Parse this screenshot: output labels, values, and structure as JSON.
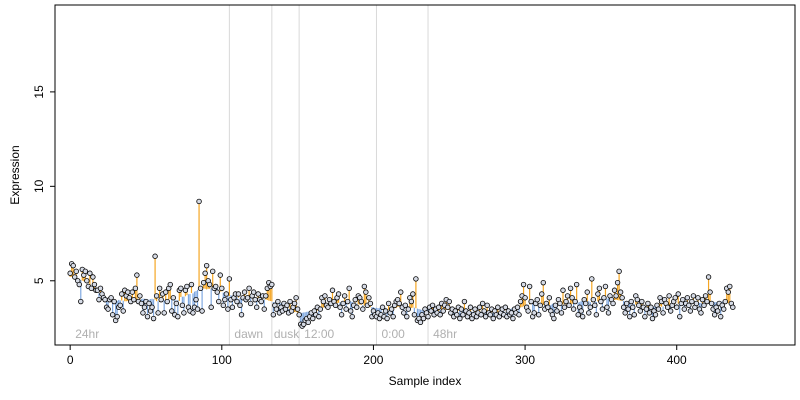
{
  "chart_data": {
    "type": "scatter",
    "xlabel": "Sample index",
    "ylabel": "Expression",
    "xlim": [
      -10,
      478
    ],
    "ylim": [
      1.6,
      19.6
    ],
    "x_ticks": [
      0,
      100,
      200,
      300,
      400
    ],
    "y_ticks": [
      5,
      10,
      15
    ],
    "grid": false,
    "baseline_style": "points joined to a smooth baseline by vertical segments: orange when above, blue when below",
    "colors": {
      "above": "#f5a623",
      "below": "#7fa8e0",
      "separator": "#d9d9d9",
      "section_label": "#b0b0b0",
      "point_fill": "#d6dbe6"
    },
    "separators": [
      105,
      133,
      151,
      202,
      236
    ],
    "section_labels": [
      {
        "x": 2,
        "text": "24hr"
      },
      {
        "x": 107,
        "text": "dawn"
      },
      {
        "x": 133,
        "text": "dusk"
      },
      {
        "x": 153,
        "text": "12:00"
      },
      {
        "x": 204,
        "text": "0:00"
      },
      {
        "x": 238,
        "text": "48hr"
      }
    ],
    "series": [
      {
        "values": [
          5.4,
          5.9,
          5.8,
          5.2,
          5.5,
          5.0,
          4.8,
          3.9,
          5.6,
          5.3,
          5.5,
          5.0,
          4.7,
          5.4,
          4.6,
          5.2,
          4.8,
          4.5,
          4.5,
          4.0,
          4.6,
          4.3,
          4.1,
          4.0,
          3.6,
          3.5,
          4.0,
          4.1,
          3.2,
          3.9,
          2.9,
          3.1,
          3.6,
          3.7,
          4.3,
          3.4,
          4.5,
          4.2,
          4.4,
          4.1,
          3.9,
          4.4,
          4.0,
          4.6,
          5.3,
          3.9,
          4.2,
          3.8,
          3.3,
          3.6,
          3.9,
          3.1,
          3.8,
          3.4,
          3.6,
          3.0,
          6.3,
          4.2,
          3.3,
          4.6,
          4.0,
          4.3,
          3.3,
          4.4,
          3.9,
          4.6,
          4.8,
          3.4,
          4.1,
          3.2,
          3.8,
          3.1,
          4.5,
          4.6,
          3.7,
          3.3,
          4.5,
          4.7,
          3.6,
          3.4,
          4.8,
          3.3,
          3.6,
          4.0,
          3.5,
          9.2,
          4.6,
          3.4,
          4.9,
          5.4,
          5.8,
          5.0,
          4.8,
          3.6,
          5.5,
          4.6,
          4.7,
          4.4,
          3.9,
          5.3,
          4.6,
          3.7,
          4.0,
          4.3,
          3.5,
          5.1,
          4.0,
          3.6,
          4.1,
          4.3,
          3.9,
          4.3,
          3.7,
          3.2,
          4.1,
          4.4,
          4.0,
          4.1,
          4.6,
          3.8,
          4.2,
          4.4,
          4.0,
          3.6,
          4.3,
          4.0,
          3.9,
          4.2,
          3.5,
          4.2,
          4.6,
          4.9,
          4.7,
          4.8,
          3.2,
          3.7,
          3.5,
          3.9,
          3.3,
          3.6,
          3.4,
          3.8,
          3.5,
          3.7,
          3.3,
          3.9,
          3.4,
          3.6,
          3.8,
          4.1,
          3.5,
          3.2,
          2.7,
          2.6,
          2.7,
          2.9,
          3.0,
          2.8,
          3.1,
          3.3,
          3.0,
          3.4,
          3.2,
          3.6,
          3.1,
          3.5,
          4.1,
          3.9,
          4.2,
          3.7,
          3.6,
          4.0,
          3.8,
          4.5,
          3.9,
          3.7,
          4.1,
          4.3,
          3.6,
          3.2,
          3.8,
          4.2,
          3.5,
          3.9,
          4.6,
          3.4,
          3.1,
          3.7,
          4.0,
          3.6,
          4.2,
          4.1,
          3.9,
          3.5,
          4.7,
          4.4,
          3.7,
          4.1,
          3.8,
          3.1,
          3.4,
          3.2,
          3.1,
          3.3,
          3.0,
          3.2,
          3.6,
          3.1,
          3.4,
          3.0,
          3.8,
          3.3,
          3.5,
          3.1,
          3.7,
          3.9,
          4.0,
          3.8,
          4.4,
          3.6,
          3.3,
          3.7,
          3.1,
          3.5,
          4.1,
          3.9,
          4.3,
          3.2,
          5.1,
          2.9,
          3.0,
          2.8,
          3.2,
          3.0,
          3.5,
          3.3,
          3.1,
          3.6,
          3.4,
          3.7,
          3.2,
          3.5,
          3.3,
          3.6,
          3.2,
          3.8,
          3.4,
          3.7,
          4.0,
          3.6,
          3.9,
          3.3,
          3.5,
          3.1,
          3.4,
          3.2,
          3.6,
          3.0,
          3.5,
          3.2,
          3.9,
          3.4,
          3.1,
          3.3,
          3.6,
          3.0,
          3.2,
          3.5,
          3.1,
          3.3,
          3.6,
          3.2,
          3.8,
          3.4,
          3.1,
          3.7,
          3.3,
          3.2,
          3.5,
          3.0,
          3.4,
          3.2,
          3.6,
          3.1,
          3.3,
          3.5,
          3.2,
          3.6,
          3.1,
          3.4,
          3.2,
          3.3,
          3.0,
          3.5,
          3.3,
          3.6,
          3.2,
          3.9,
          4.2,
          4.8,
          4.1,
          3.6,
          3.4,
          4.7,
          3.9,
          3.1,
          3.3,
          3.8,
          4.0,
          3.2,
          3.7,
          4.3,
          4.9,
          3.5,
          3.8,
          3.6,
          4.1,
          3.4,
          3.2,
          3.0,
          3.7,
          3.4,
          4.0,
          3.8,
          3.3,
          4.5,
          3.6,
          3.9,
          4.2,
          3.7,
          4.6,
          4.1,
          3.5,
          3.9,
          4.8,
          3.2,
          3.6,
          3.4,
          3.1,
          4.0,
          3.8,
          4.4,
          3.3,
          3.6,
          5.1,
          4.0,
          3.7,
          3.2,
          4.3,
          4.6,
          3.9,
          3.5,
          4.1,
          4.7,
          3.6,
          3.3,
          4.2,
          4.0,
          3.8,
          4.5,
          4.2,
          4.9,
          5.5,
          4.4,
          4.1,
          3.6,
          3.3,
          3.8,
          3.5,
          3.1,
          3.9,
          3.6,
          3.2,
          4.2,
          4.0,
          3.7,
          3.4,
          3.9,
          3.6,
          3.1,
          3.5,
          3.8,
          3.3,
          3.6,
          3.0,
          3.4,
          3.2,
          3.7,
          3.5,
          4.1,
          3.9,
          3.3,
          4.0,
          3.8,
          3.6,
          4.2,
          3.4,
          3.7,
          3.9,
          4.1,
          3.6,
          4.3,
          3.1,
          3.8,
          4.0,
          3.5,
          3.8,
          4.1,
          3.7,
          3.4,
          3.9,
          4.2,
          3.6,
          3.8,
          4.1,
          3.5,
          3.3,
          4.0,
          3.7,
          4.2,
          3.9,
          5.2,
          4.4,
          3.8,
          3.5,
          3.2,
          3.6,
          3.4,
          3.8,
          3.1,
          3.7,
          3.5,
          3.9,
          4.6,
          4.4,
          4.7,
          3.8,
          3.6
        ]
      }
    ]
  }
}
